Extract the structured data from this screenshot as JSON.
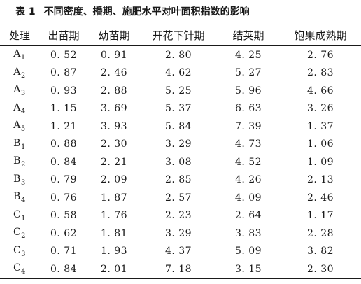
{
  "caption": {
    "number": "表 1",
    "text": "不同密度、播期、施肥水平对叶面积指数的影响"
  },
  "table": {
    "headers": [
      "处理",
      "出苗期",
      "幼苗期",
      "开花下针期",
      "结荚期",
      "饱果成熟期"
    ],
    "rows": [
      {
        "letter": "A",
        "sub": "1",
        "values": [
          "0. 52",
          "0. 91",
          "2. 80",
          "4. 25",
          "2. 76"
        ]
      },
      {
        "letter": "A",
        "sub": "2",
        "values": [
          "0. 87",
          "2. 46",
          "4. 62",
          "5. 27",
          "2. 83"
        ]
      },
      {
        "letter": "A",
        "sub": "3",
        "values": [
          "0. 93",
          "2. 88",
          "5. 25",
          "5. 96",
          "4. 66"
        ]
      },
      {
        "letter": "A",
        "sub": "4",
        "values": [
          "1. 15",
          "3. 69",
          "5. 37",
          "6. 63",
          "3. 26"
        ]
      },
      {
        "letter": "A",
        "sub": "5",
        "values": [
          "1. 21",
          "3. 93",
          "5. 84",
          "7. 39",
          "1. 37"
        ]
      },
      {
        "letter": "B",
        "sub": "1",
        "values": [
          "0. 88",
          "2. 30",
          "3. 29",
          "4. 73",
          "1. 06"
        ]
      },
      {
        "letter": "B",
        "sub": "2",
        "values": [
          "0. 84",
          "2. 21",
          "3. 08",
          "4. 52",
          "1. 09"
        ]
      },
      {
        "letter": "B",
        "sub": "3",
        "values": [
          "0. 79",
          "2. 09",
          "2. 85",
          "4. 26",
          "2. 13"
        ]
      },
      {
        "letter": "B",
        "sub": "4",
        "values": [
          "0. 76",
          "1. 87",
          "2. 57",
          "4. 09",
          "2. 46"
        ]
      },
      {
        "letter": "C",
        "sub": "1",
        "values": [
          "0. 58",
          "1. 76",
          "2. 23",
          "2. 64",
          "1. 17"
        ]
      },
      {
        "letter": "C",
        "sub": "2",
        "values": [
          "0. 62",
          "1. 81",
          "3. 29",
          "3. 83",
          "2. 28"
        ]
      },
      {
        "letter": "C",
        "sub": "3",
        "values": [
          "0. 71",
          "1. 93",
          "4. 37",
          "5. 09",
          "3. 82"
        ]
      },
      {
        "letter": "C",
        "sub": "4",
        "values": [
          "0. 84",
          "2. 01",
          "7. 18",
          "3. 15",
          "2. 30"
        ]
      }
    ]
  }
}
